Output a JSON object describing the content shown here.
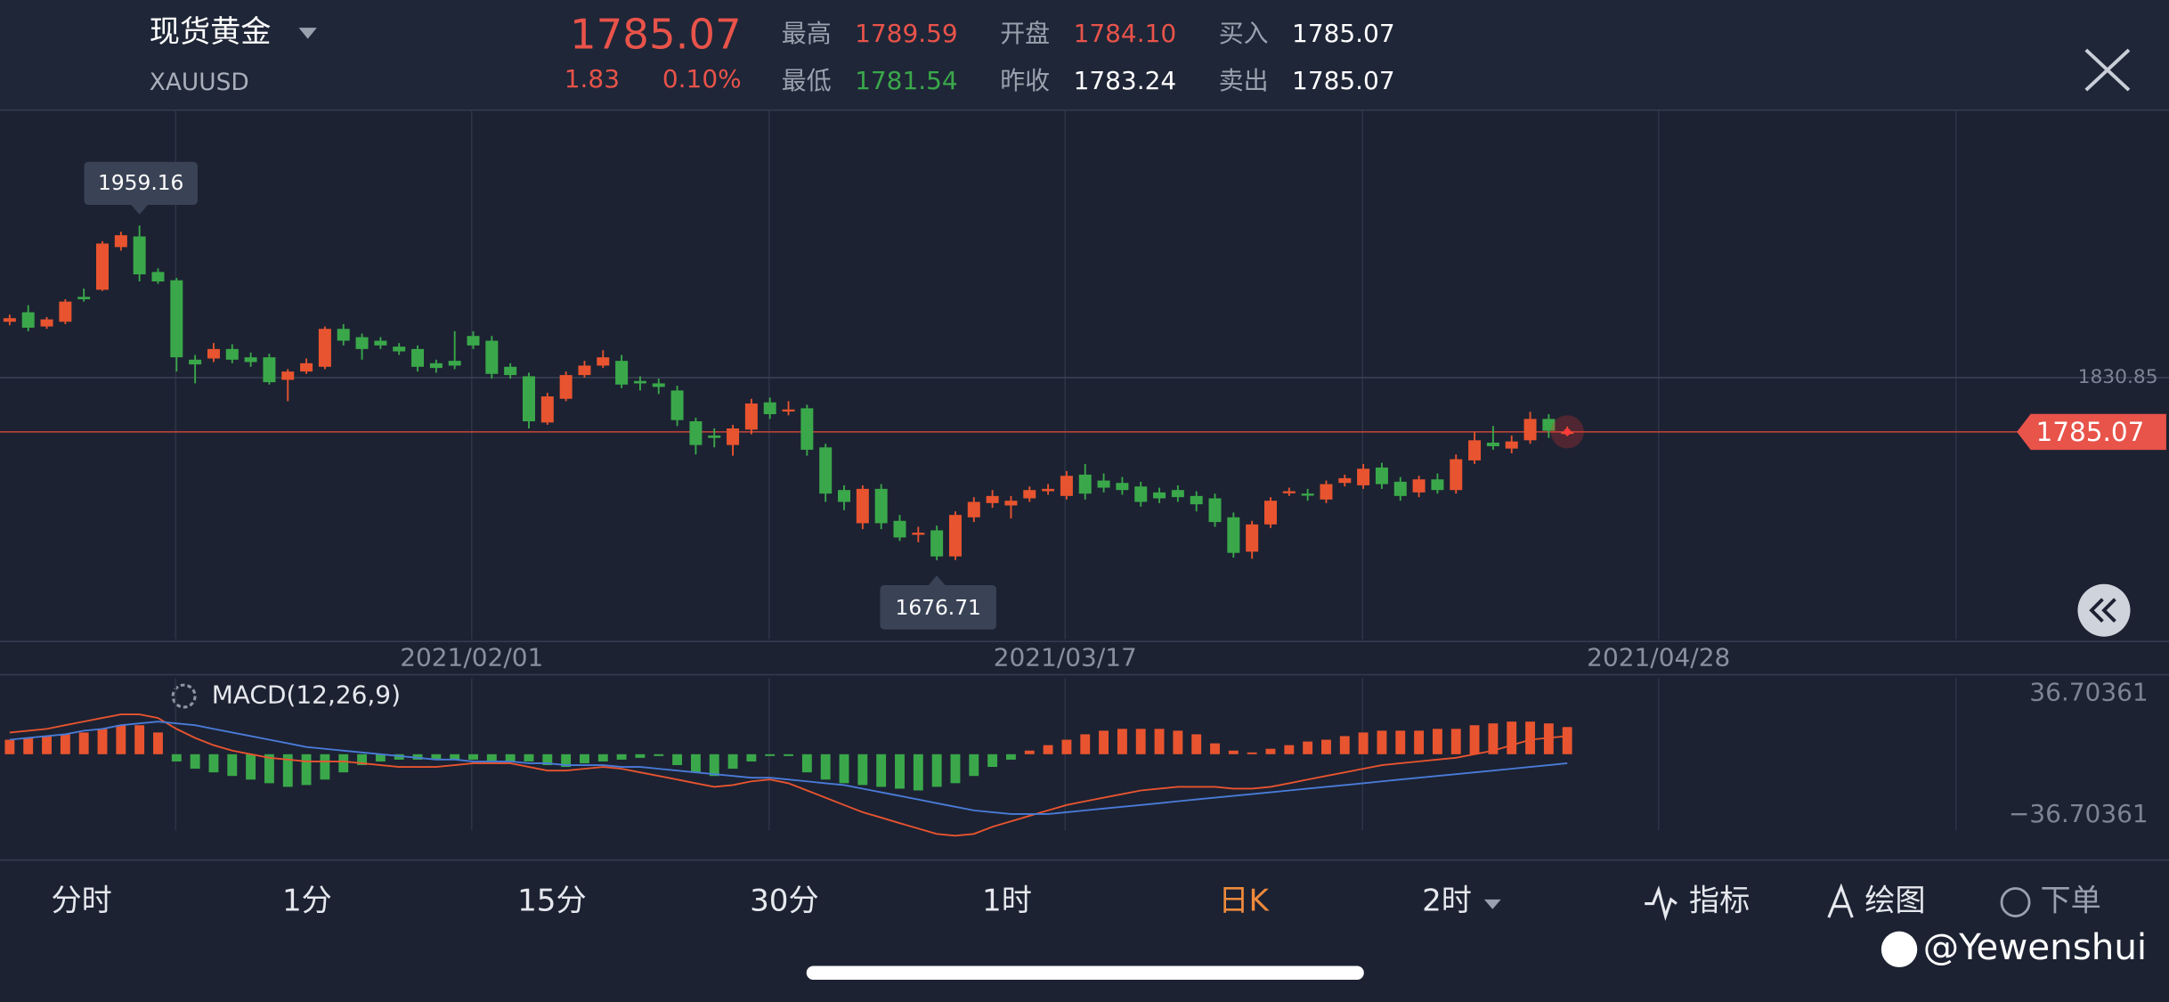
{
  "header": {
    "title": "现货黄金",
    "symbol": "XAUUSD",
    "price": "1785.07",
    "change": "1.83",
    "change_pct": "0.10%",
    "stats": [
      {
        "label": "最高",
        "value": "1789.59"
      },
      {
        "label": "最低",
        "value": "1781.54"
      },
      {
        "label": "开盘",
        "value": "1784.10"
      },
      {
        "label": "昨收",
        "value": "1783.24"
      },
      {
        "label": "买入",
        "value": "1785.07"
      },
      {
        "label": "卖出",
        "value": "1785.07"
      }
    ]
  },
  "chart_data": {
    "type": "candlestick",
    "up_color": "#e8542f",
    "down_color": "#3aa84a",
    "ylim": [
      1610,
      2056
    ],
    "high_marker": 1959.16,
    "low_marker": 1676.71,
    "ref_line": 1830.85,
    "current_price": 1785.07,
    "dates": [
      "2021/02/01",
      "2021/03/17",
      "2021/04/28"
    ],
    "candles": [
      [
        1878,
        1884,
        1875,
        1881
      ],
      [
        1886,
        1892,
        1870,
        1873
      ],
      [
        1874,
        1882,
        1872,
        1880
      ],
      [
        1878,
        1897,
        1876,
        1895
      ],
      [
        1899,
        1906,
        1895,
        1897
      ],
      [
        1905,
        1946,
        1904,
        1944
      ],
      [
        1941,
        1954,
        1938,
        1951
      ],
      [
        1950,
        1959.16,
        1912,
        1918
      ],
      [
        1920,
        1923,
        1910,
        1912
      ],
      [
        1913,
        1915,
        1836,
        1848
      ],
      [
        1846,
        1850,
        1826,
        1842
      ],
      [
        1847,
        1860,
        1844,
        1855
      ],
      [
        1855,
        1859,
        1843,
        1846
      ],
      [
        1848,
        1852,
        1840,
        1844
      ],
      [
        1848,
        1851,
        1825,
        1827
      ],
      [
        1829,
        1838,
        1811,
        1836
      ],
      [
        1836,
        1847,
        1834,
        1843
      ],
      [
        1840,
        1874,
        1838,
        1872
      ],
      [
        1872,
        1876,
        1858,
        1862
      ],
      [
        1865,
        1868,
        1846,
        1855
      ],
      [
        1862,
        1865,
        1855,
        1858
      ],
      [
        1857,
        1860,
        1850,
        1853
      ],
      [
        1855,
        1858,
        1836,
        1840
      ],
      [
        1843,
        1846,
        1835,
        1839
      ],
      [
        1845,
        1870,
        1838,
        1841
      ],
      [
        1866,
        1870,
        1855,
        1858
      ],
      [
        1862,
        1866,
        1830,
        1834
      ],
      [
        1840,
        1843,
        1830,
        1833
      ],
      [
        1832,
        1835,
        1788,
        1794
      ],
      [
        1793,
        1818,
        1791,
        1815
      ],
      [
        1813,
        1836,
        1811,
        1833
      ],
      [
        1833,
        1845,
        1831,
        1841
      ],
      [
        1841,
        1854,
        1839,
        1848
      ],
      [
        1845,
        1850,
        1822,
        1825
      ],
      [
        1828,
        1832,
        1820,
        1826
      ],
      [
        1826,
        1830,
        1817,
        1823
      ],
      [
        1820,
        1824,
        1790,
        1795
      ],
      [
        1794,
        1797,
        1766,
        1774
      ],
      [
        1782,
        1788,
        1772,
        1780
      ],
      [
        1774,
        1791,
        1765,
        1788
      ],
      [
        1787,
        1813,
        1783,
        1809
      ],
      [
        1810,
        1814,
        1796,
        1800
      ],
      [
        1803,
        1811,
        1799,
        1804
      ],
      [
        1805,
        1808,
        1765,
        1770
      ],
      [
        1772,
        1775,
        1726,
        1733
      ],
      [
        1736,
        1740,
        1719,
        1726
      ],
      [
        1708,
        1740,
        1703,
        1737
      ],
      [
        1737,
        1741,
        1703,
        1708
      ],
      [
        1710,
        1715,
        1693,
        1696
      ],
      [
        1699,
        1705,
        1692,
        1700
      ],
      [
        1702,
        1706,
        1676.71,
        1680
      ],
      [
        1680,
        1718,
        1677,
        1715
      ],
      [
        1713,
        1730,
        1709,
        1726
      ],
      [
        1725,
        1736,
        1721,
        1731
      ],
      [
        1723,
        1731,
        1712,
        1727
      ],
      [
        1729,
        1739,
        1726,
        1736
      ],
      [
        1735,
        1741,
        1732,
        1737
      ],
      [
        1731,
        1752,
        1728,
        1748
      ],
      [
        1749,
        1758,
        1728,
        1733
      ],
      [
        1744,
        1750,
        1734,
        1738
      ],
      [
        1742,
        1747,
        1732,
        1736
      ],
      [
        1739,
        1743,
        1722,
        1726
      ],
      [
        1734,
        1738,
        1725,
        1729
      ],
      [
        1736,
        1740,
        1726,
        1730
      ],
      [
        1731,
        1735,
        1718,
        1724
      ],
      [
        1729,
        1733,
        1705,
        1709
      ],
      [
        1713,
        1717,
        1679,
        1683
      ],
      [
        1684,
        1710,
        1678,
        1707
      ],
      [
        1707,
        1730,
        1704,
        1727
      ],
      [
        1734,
        1738,
        1731,
        1735
      ],
      [
        1733,
        1737,
        1727,
        1732
      ],
      [
        1728,
        1744,
        1725,
        1741
      ],
      [
        1742,
        1749,
        1739,
        1746
      ],
      [
        1740,
        1758,
        1737,
        1754
      ],
      [
        1755,
        1759,
        1737,
        1741
      ],
      [
        1743,
        1747,
        1727,
        1731
      ],
      [
        1734,
        1748,
        1730,
        1745
      ],
      [
        1745,
        1750,
        1733,
        1736
      ],
      [
        1736,
        1766,
        1733,
        1762
      ],
      [
        1761,
        1785,
        1758,
        1778
      ],
      [
        1776,
        1790,
        1770,
        1773
      ],
      [
        1771,
        1782,
        1767,
        1777
      ],
      [
        1778,
        1802,
        1775,
        1796
      ],
      [
        1796,
        1800,
        1780,
        1786
      ],
      [
        1784.1,
        1789.59,
        1781.54,
        1785.07
      ]
    ]
  },
  "macd": {
    "title": "MACD(12,26,9)",
    "ylim": [
      -42,
      42
    ],
    "yticks": [
      {
        "value": 36.70361,
        "label": "36.70361"
      },
      {
        "value": -36.70361,
        "label": "−36.70361"
      }
    ],
    "dif_color": "#e8542f",
    "dea_color": "#4a7bd8",
    "hist": [
      8,
      9,
      10,
      11,
      12,
      14,
      16,
      16,
      12,
      -4,
      -8,
      -10,
      -12,
      -14,
      -16,
      -18,
      -17,
      -14,
      -10,
      -6,
      -4,
      -3,
      -3,
      -3,
      -3,
      -3,
      -4,
      -4,
      -4,
      -6,
      -7,
      -5,
      -4,
      -3,
      -2,
      -1,
      -6,
      -10,
      -12,
      -8,
      -4,
      -1,
      -1,
      -10,
      -14,
      -16,
      -17,
      -18,
      -19,
      -20,
      -18,
      -16,
      -12,
      -7,
      -3,
      2,
      5,
      8,
      11,
      13,
      14,
      14,
      14,
      13,
      11,
      6,
      2,
      1,
      3,
      5,
      7,
      8,
      10,
      12,
      13,
      13,
      13,
      14,
      14,
      16,
      17,
      18,
      18,
      17,
      15
    ],
    "dif": [
      12,
      13,
      14,
      16,
      18,
      20,
      22,
      22,
      20,
      14,
      9,
      5,
      2,
      0,
      -2,
      -3,
      -4,
      -4,
      -4,
      -5,
      -6,
      -7,
      -7,
      -7,
      -6,
      -5,
      -5,
      -5,
      -7,
      -9,
      -9,
      -8,
      -7,
      -8,
      -10,
      -12,
      -14,
      -16,
      -18,
      -17,
      -15,
      -14,
      -16,
      -20,
      -24,
      -28,
      -32,
      -35,
      -38,
      -41,
      -44,
      -45,
      -44,
      -40,
      -37,
      -34,
      -31,
      -28,
      -26,
      -24,
      -22,
      -20,
      -19,
      -18,
      -18,
      -18,
      -19,
      -19,
      -18,
      -16,
      -14,
      -12,
      -10,
      -8,
      -6,
      -5,
      -4,
      -3,
      -2,
      0,
      2,
      5,
      8,
      9,
      10
    ],
    "dea": [
      8,
      9,
      10,
      11,
      13,
      14,
      16,
      17,
      18,
      17,
      16,
      14,
      12,
      10,
      8,
      6,
      4,
      3,
      2,
      1,
      0,
      -1,
      -2,
      -3,
      -3,
      -4,
      -4,
      -4,
      -5,
      -5,
      -6,
      -6,
      -6,
      -7,
      -7,
      -8,
      -9,
      -10,
      -11,
      -12,
      -13,
      -13,
      -14,
      -15,
      -16,
      -17,
      -19,
      -21,
      -23,
      -25,
      -27,
      -29,
      -31,
      -32,
      -33,
      -33,
      -33,
      -32,
      -31,
      -30,
      -29,
      -28,
      -27,
      -26,
      -25,
      -24,
      -23,
      -22,
      -21,
      -20,
      -19,
      -18,
      -17,
      -16,
      -15,
      -14,
      -13,
      -12,
      -11,
      -10,
      -9,
      -8,
      -7,
      -6,
      -5
    ]
  },
  "tabs": [
    "分时",
    "1分",
    "15分",
    "30分",
    "1时",
    "日K",
    "2时"
  ],
  "tools": [
    "指标",
    "绘图",
    "下单"
  ],
  "watermark": "@Yewenshui"
}
